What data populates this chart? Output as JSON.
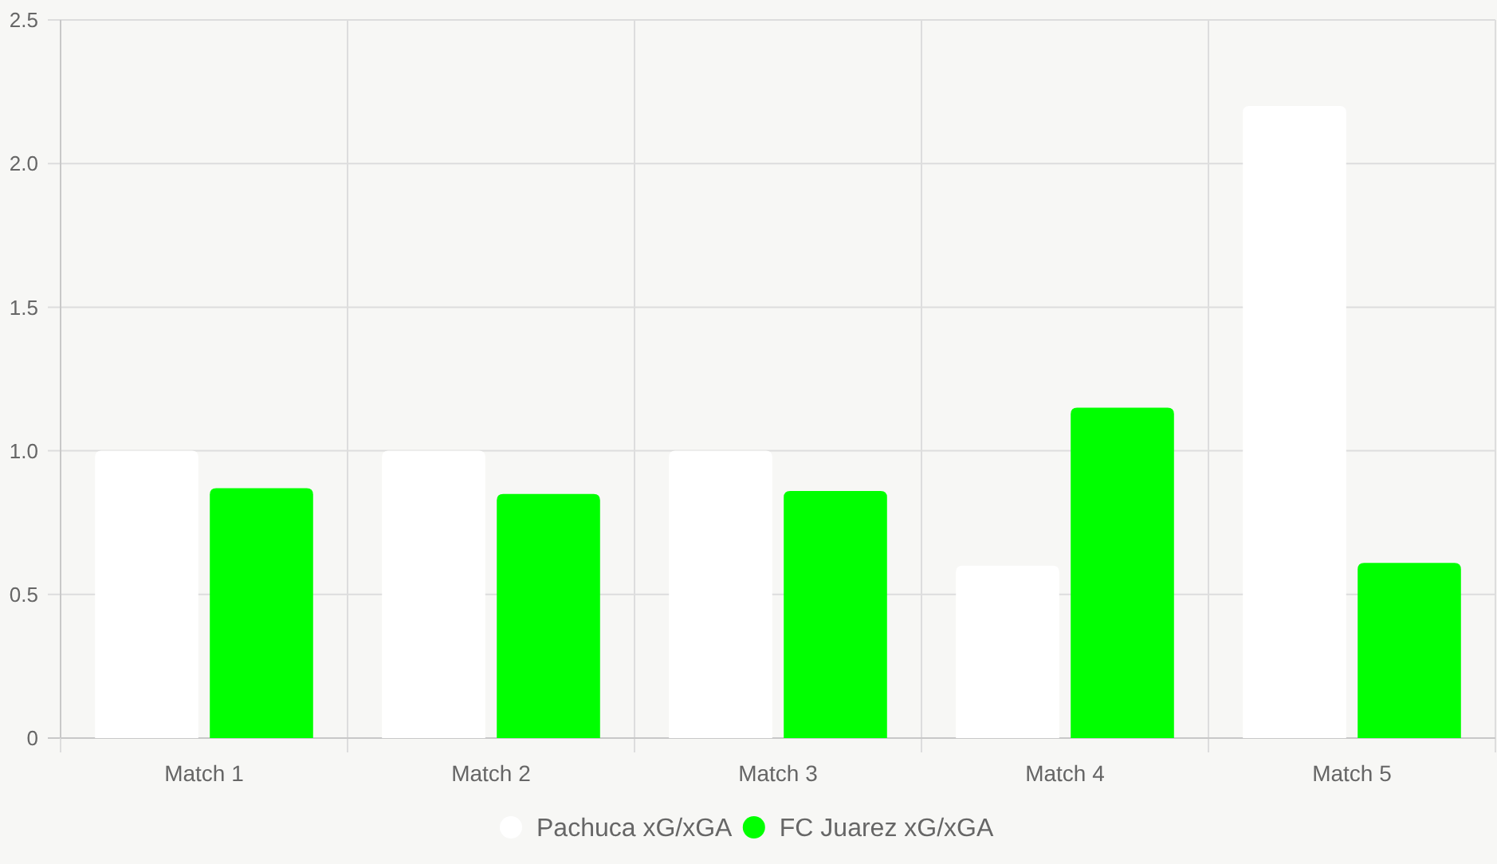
{
  "chart_data": {
    "type": "bar",
    "categories": [
      "Match 1",
      "Match 2",
      "Match 3",
      "Match 4",
      "Match 5"
    ],
    "series": [
      {
        "name": "Pachuca xG/xGA",
        "color": "#ffffff",
        "values": [
          1.0,
          1.0,
          1.0,
          0.6,
          2.2
        ]
      },
      {
        "name": "FC Juarez xG/xGA",
        "color": "#00ff00",
        "values": [
          0.87,
          0.85,
          0.86,
          1.15,
          0.61
        ]
      }
    ],
    "ylim": [
      0,
      2.5
    ],
    "yticks": [
      0,
      0.5,
      {
        "value": 1,
        "label": "1.0"
      },
      1.5,
      {
        "value": 2,
        "label": "2.0"
      },
      2.5
    ],
    "grid": true,
    "legend": "bottom"
  }
}
